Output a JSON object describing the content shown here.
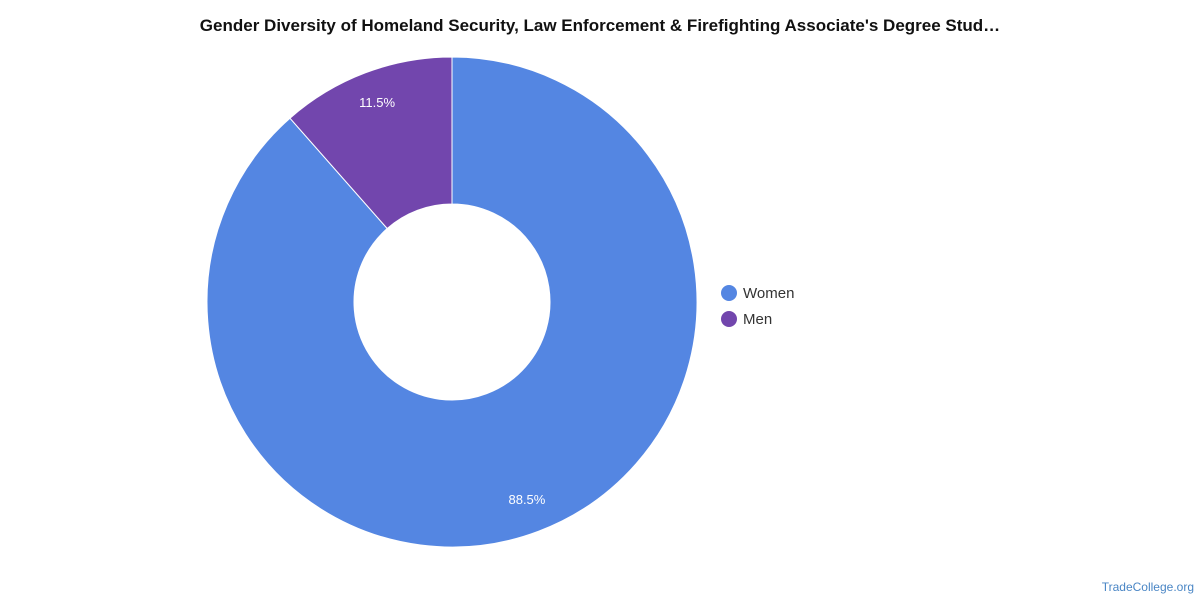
{
  "chart_data": {
    "type": "pie",
    "title": "Gender Diversity of Homeland Security, Law Enforcement & Firefighting Associate's Degree Stud…",
    "categories": [
      "Women",
      "Men"
    ],
    "values": [
      88.5,
      11.5
    ],
    "data_labels": [
      "88.5%",
      "11.5%"
    ],
    "colors": [
      "#5486e2",
      "#7246ad"
    ],
    "donut": true,
    "legend_position": "right"
  },
  "source": "TradeCollege.org"
}
